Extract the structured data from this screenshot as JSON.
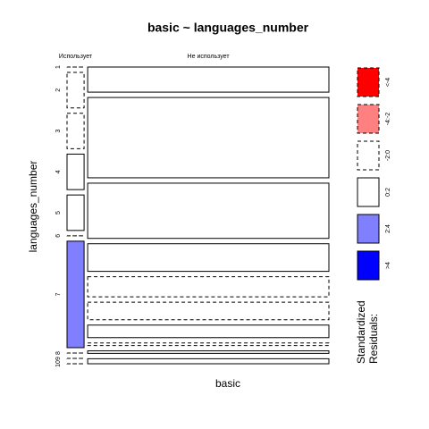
{
  "chart_data": {
    "type": "mosaic",
    "title": "basic ~ languages_number",
    "x_label": "basic",
    "y_label": "languages_number",
    "columns": [
      "Использует",
      "Не использует"
    ],
    "rows": [
      "1",
      "2",
      "3",
      "4",
      "5",
      "6",
      "7",
      "8",
      "9",
      "10"
    ],
    "counts": [
      [
        0,
        1,
        1,
        1,
        1,
        0,
        3,
        0,
        0,
        0
      ],
      [
        10,
        32,
        22,
        11,
        8,
        7,
        5,
        1,
        1,
        2
      ]
    ],
    "residual_bin": [
      [
        3,
        3,
        3,
        2,
        2,
        3,
        1,
        3,
        3,
        3
      ],
      [
        2,
        2,
        2,
        2,
        3,
        3,
        2,
        3,
        2,
        2
      ]
    ],
    "legend_title": [
      "Standardized",
      "Residuals:"
    ],
    "legend": [
      {
        "label": ">4",
        "color": "#0000ff",
        "dashed": false
      },
      {
        "label": "2:4",
        "color": "#8080ff",
        "dashed": false
      },
      {
        "label": "0:2",
        "color": "#ffffff",
        "dashed": false
      },
      {
        "label": "-2:0",
        "color": "#ffffff",
        "dashed": true
      },
      {
        "label": "-4:-2",
        "color": "#ff8080",
        "dashed": true
      },
      {
        "label": "<-4",
        "color": "#ff0000",
        "dashed": true
      }
    ]
  }
}
